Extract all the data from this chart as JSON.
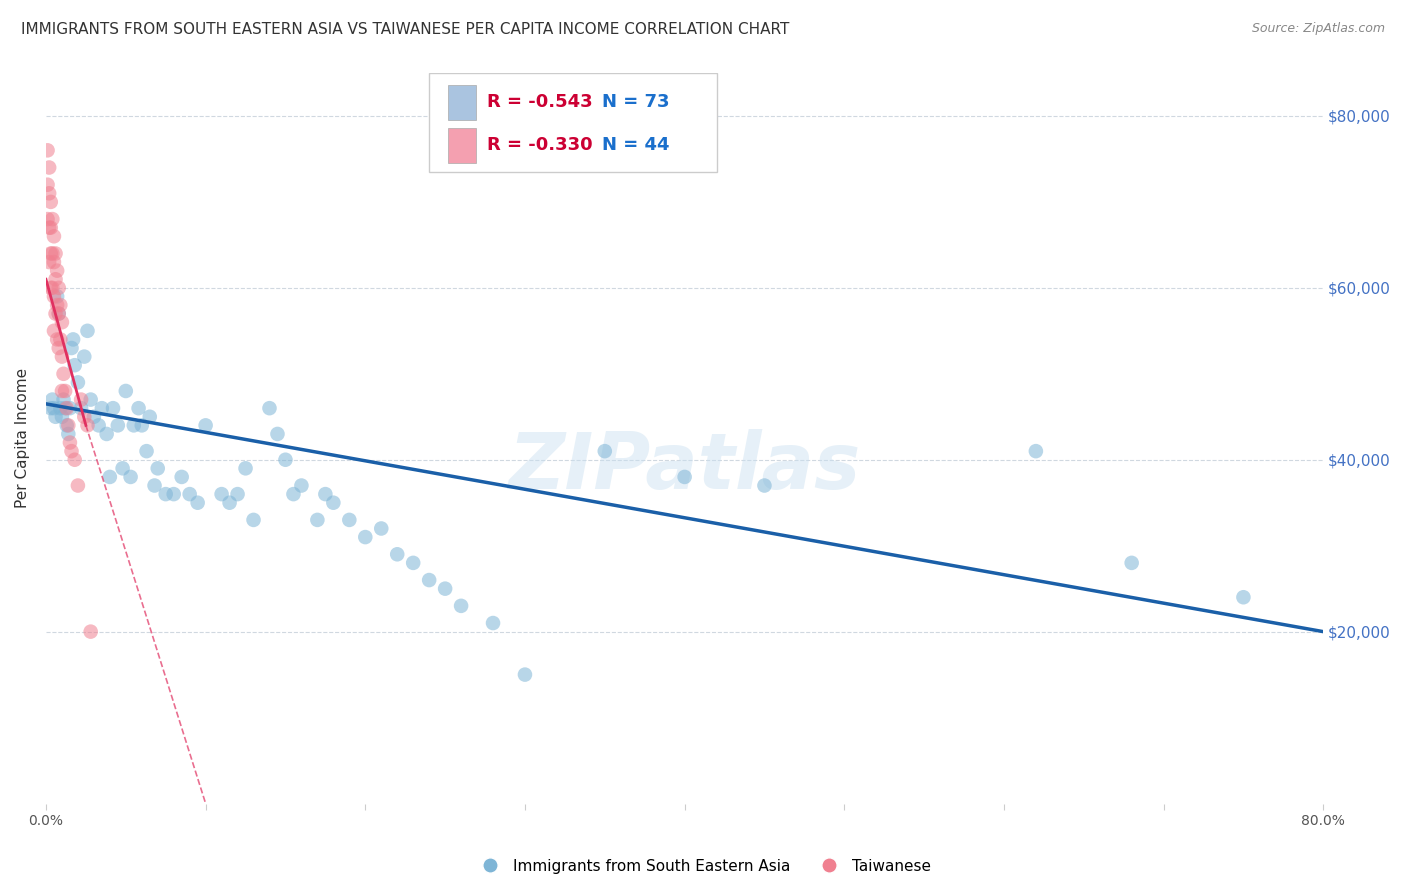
{
  "title": "IMMIGRANTS FROM SOUTH EASTERN ASIA VS TAIWANESE PER CAPITA INCOME CORRELATION CHART",
  "source": "Source: ZipAtlas.com",
  "ylabel": "Per Capita Income",
  "y_ticks": [
    20000,
    40000,
    60000,
    80000
  ],
  "y_tick_labels": [
    "$20,000",
    "$40,000",
    "$60,000",
    "$80,000"
  ],
  "xlim": [
    0.0,
    0.8
  ],
  "ylim": [
    0,
    85000
  ],
  "watermark": "ZIPatlas",
  "legend_entries": [
    {
      "color": "#aac4e0",
      "R": "-0.543",
      "N": "73"
    },
    {
      "color": "#f4a0b0",
      "R": "-0.330",
      "N": "44"
    }
  ],
  "bottom_legend": [
    "Immigrants from South Eastern Asia",
    "Taiwanese"
  ],
  "blue_scatter": {
    "x": [
      0.003,
      0.004,
      0.005,
      0.006,
      0.007,
      0.008,
      0.009,
      0.01,
      0.011,
      0.012,
      0.013,
      0.014,
      0.015,
      0.016,
      0.017,
      0.018,
      0.02,
      0.022,
      0.024,
      0.026,
      0.028,
      0.03,
      0.033,
      0.035,
      0.038,
      0.04,
      0.042,
      0.045,
      0.048,
      0.05,
      0.053,
      0.055,
      0.058,
      0.06,
      0.063,
      0.065,
      0.068,
      0.07,
      0.075,
      0.08,
      0.085,
      0.09,
      0.095,
      0.1,
      0.11,
      0.115,
      0.12,
      0.125,
      0.13,
      0.14,
      0.145,
      0.15,
      0.155,
      0.16,
      0.17,
      0.175,
      0.18,
      0.19,
      0.2,
      0.21,
      0.22,
      0.23,
      0.24,
      0.25,
      0.26,
      0.28,
      0.3,
      0.35,
      0.4,
      0.45,
      0.62,
      0.68,
      0.75
    ],
    "y": [
      46000,
      47000,
      46000,
      45000,
      59000,
      57000,
      46000,
      45000,
      47000,
      46000,
      44000,
      43000,
      46000,
      53000,
      54000,
      51000,
      49000,
      46000,
      52000,
      55000,
      47000,
      45000,
      44000,
      46000,
      43000,
      38000,
      46000,
      44000,
      39000,
      48000,
      38000,
      44000,
      46000,
      44000,
      41000,
      45000,
      37000,
      39000,
      36000,
      36000,
      38000,
      36000,
      35000,
      44000,
      36000,
      35000,
      36000,
      39000,
      33000,
      46000,
      43000,
      40000,
      36000,
      37000,
      33000,
      36000,
      35000,
      33000,
      31000,
      32000,
      29000,
      28000,
      26000,
      25000,
      23000,
      21000,
      15000,
      41000,
      38000,
      37000,
      41000,
      28000,
      24000
    ]
  },
  "pink_scatter": {
    "x": [
      0.001,
      0.001,
      0.001,
      0.002,
      0.002,
      0.002,
      0.002,
      0.003,
      0.003,
      0.003,
      0.003,
      0.004,
      0.004,
      0.004,
      0.005,
      0.005,
      0.005,
      0.005,
      0.006,
      0.006,
      0.006,
      0.007,
      0.007,
      0.007,
      0.008,
      0.008,
      0.008,
      0.009,
      0.009,
      0.01,
      0.01,
      0.01,
      0.011,
      0.012,
      0.013,
      0.014,
      0.015,
      0.016,
      0.018,
      0.02,
      0.022,
      0.024,
      0.026,
      0.028
    ],
    "y": [
      76000,
      72000,
      68000,
      74000,
      71000,
      67000,
      63000,
      70000,
      67000,
      64000,
      60000,
      68000,
      64000,
      60000,
      66000,
      63000,
      59000,
      55000,
      64000,
      61000,
      57000,
      62000,
      58000,
      54000,
      60000,
      57000,
      53000,
      58000,
      54000,
      56000,
      52000,
      48000,
      50000,
      48000,
      46000,
      44000,
      42000,
      41000,
      40000,
      37000,
      47000,
      45000,
      44000,
      20000
    ]
  },
  "blue_line": {
    "x0": 0.0,
    "y0": 46500,
    "x1": 0.8,
    "y1": 20000
  },
  "pink_line_solid": {
    "x0": 0.0,
    "y0": 61000,
    "x1": 0.025,
    "y1": 44000
  },
  "pink_line_dashed": {
    "x0": 0.025,
    "y0": 44000,
    "x1": 0.1,
    "y1": 0
  },
  "scatter_size": 110,
  "scatter_alpha": 0.55,
  "blue_color": "#7eb5d6",
  "pink_color": "#f08090",
  "blue_line_color": "#1a5fa8",
  "pink_line_color": "#e03060",
  "grid_color": "#d0d8e0",
  "background_color": "#ffffff",
  "title_color": "#333333",
  "right_tick_color": "#4472c4",
  "title_fontsize": 11,
  "source_fontsize": 9
}
